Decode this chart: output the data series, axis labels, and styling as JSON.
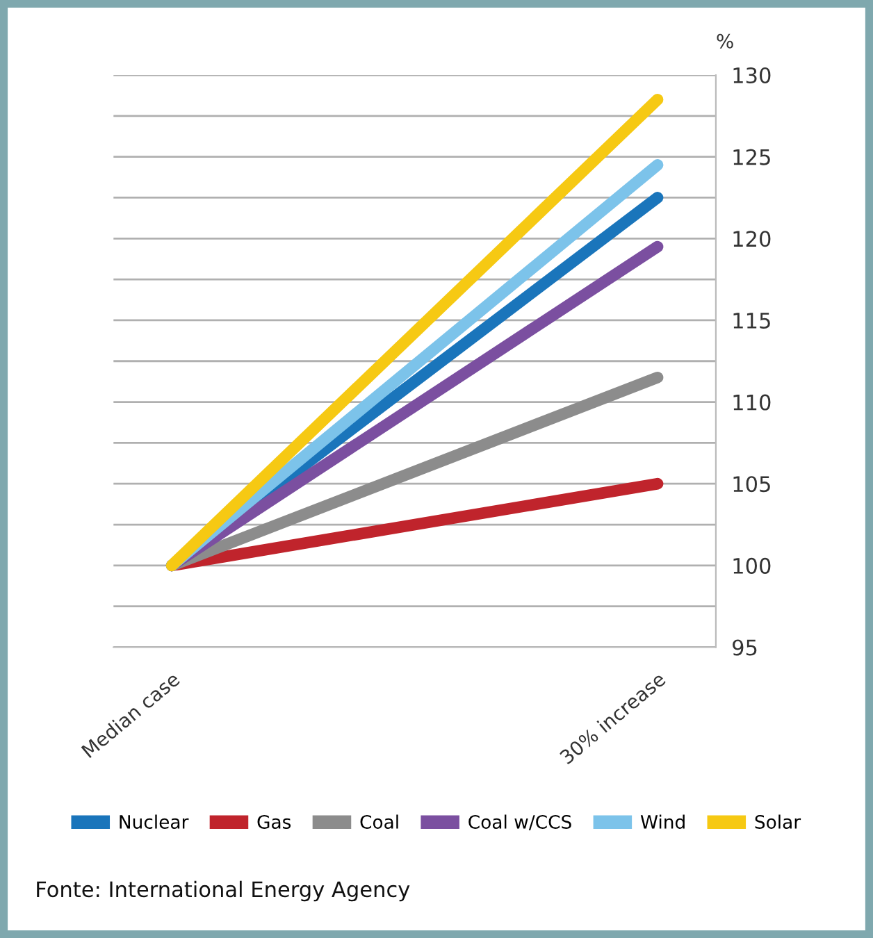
{
  "chart_data": {
    "type": "line",
    "ylabel": "%",
    "categories": [
      "Median case",
      "30% increase"
    ],
    "series": [
      {
        "name": "Nuclear",
        "color": "#1a75bb",
        "values": [
          100,
          122.5
        ]
      },
      {
        "name": "Gas",
        "color": "#c0242c",
        "values": [
          100,
          105
        ]
      },
      {
        "name": "Coal",
        "color": "#8c8c8c",
        "values": [
          100,
          111.5
        ]
      },
      {
        "name": "Coal w/CCS",
        "color": "#7b4fa0",
        "values": [
          100,
          119.5
        ]
      },
      {
        "name": "Wind",
        "color": "#7cc3ea",
        "values": [
          100,
          124.5
        ]
      },
      {
        "name": "Solar",
        "color": "#f6c913",
        "values": [
          100,
          128.5
        ]
      }
    ],
    "ylim": [
      95,
      130
    ],
    "yticks": [
      95,
      {
        "value": 97.5,
        "label": null
      },
      100,
      {
        "value": 102.5,
        "label": null
      },
      105,
      {
        "value": 107.5,
        "label": null
      },
      110,
      {
        "value": 112.5,
        "label": null
      },
      115,
      {
        "value": 117.5,
        "label": null
      },
      120,
      {
        "value": 122.5,
        "label": null
      },
      125,
      {
        "value": 127.5,
        "label": null
      },
      130
    ],
    "grid": "y",
    "legend": "bottom",
    "marker": "none",
    "line_style": "solid",
    "annotations": [
      "Fonte: International Energy Agency"
    ]
  }
}
